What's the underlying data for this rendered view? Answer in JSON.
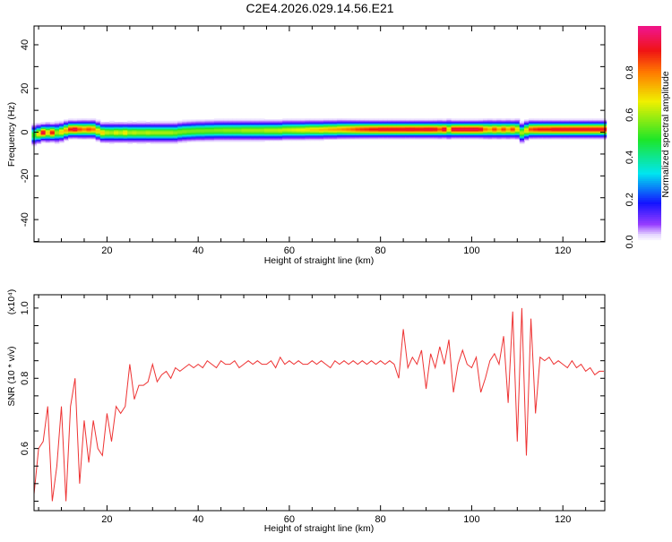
{
  "title": "C2E4.2026.029.14.56.E21",
  "chart_data": [
    {
      "type": "heatmap",
      "title": "C2E4.2026.029.14.56.E21",
      "xlabel": "Height of straight line (km)",
      "ylabel": "Frequency (Hz)",
      "xlim": [
        4,
        129.2
      ],
      "ylim": [
        -50.2,
        48.6
      ],
      "xticks": [
        20,
        40,
        60,
        80,
        100,
        120
      ],
      "yticks": [
        -40,
        -20,
        0,
        20,
        40
      ],
      "xtick_labels": [
        "20",
        "40",
        "60",
        "80",
        "100",
        "120"
      ],
      "ytick_labels": [
        "-40",
        "-20",
        "0",
        "20",
        "40"
      ],
      "colorbar": {
        "label": "Normalized spectral amplitude",
        "range": [
          0,
          1.02
        ],
        "ticks": [
          0.0,
          0.2,
          0.4,
          0.6,
          0.8
        ],
        "tick_labels": [
          "0.0",
          "0.2",
          "0.4",
          "0.6",
          "0.8"
        ]
      },
      "x": [
        4,
        5,
        6,
        7,
        8,
        9,
        10,
        11,
        12,
        13,
        14,
        15,
        16,
        17,
        18,
        19,
        20,
        21,
        22,
        23,
        24,
        25,
        26,
        27,
        28,
        29,
        30,
        31,
        32,
        33,
        34,
        35,
        36,
        37,
        38,
        39,
        40,
        41,
        42,
        43,
        44,
        45,
        46,
        47,
        48,
        49,
        50,
        51,
        52,
        53,
        54,
        55,
        56,
        57,
        58,
        59,
        60,
        61,
        62,
        63,
        64,
        65,
        66,
        67,
        68,
        69,
        70,
        71,
        72,
        73,
        74,
        75,
        76,
        77,
        78,
        79,
        80,
        81,
        82,
        83,
        84,
        85,
        86,
        87,
        88,
        89,
        90,
        91,
        92,
        93,
        94,
        95,
        96,
        97,
        98,
        99,
        100,
        101,
        102,
        103,
        104,
        105,
        106,
        107,
        108,
        109,
        110,
        111,
        112,
        113,
        114,
        115,
        116,
        117,
        118,
        119,
        120,
        121,
        122,
        123,
        124,
        125,
        126,
        127,
        128,
        129
      ],
      "peak_amplitude": [
        0.5,
        0.7,
        0.95,
        0.7,
        0.9,
        0.6,
        0.7,
        0.75,
        0.9,
        0.95,
        0.85,
        0.8,
        0.85,
        0.8,
        0.7,
        0.7,
        0.62,
        0.6,
        0.65,
        0.62,
        0.68,
        0.6,
        0.62,
        0.6,
        0.6,
        0.62,
        0.6,
        0.6,
        0.6,
        0.6,
        0.6,
        0.58,
        0.57,
        0.57,
        0.56,
        0.56,
        0.56,
        0.56,
        0.56,
        0.56,
        0.57,
        0.57,
        0.58,
        0.58,
        0.58,
        0.58,
        0.6,
        0.6,
        0.6,
        0.6,
        0.6,
        0.62,
        0.62,
        0.62,
        0.63,
        0.63,
        0.64,
        0.65,
        0.66,
        0.67,
        0.68,
        0.7,
        0.7,
        0.72,
        0.72,
        0.74,
        0.75,
        0.76,
        0.78,
        0.8,
        0.82,
        0.85,
        0.87,
        0.88,
        0.9,
        0.9,
        0.92,
        0.92,
        0.92,
        0.92,
        0.92,
        0.92,
        0.93,
        0.93,
        0.92,
        0.92,
        0.93,
        0.93,
        0.92,
        0.85,
        0.95,
        0.7,
        0.95,
        0.95,
        0.95,
        0.95,
        0.95,
        0.95,
        0.92,
        0.8,
        0.75,
        0.85,
        0.75,
        0.85,
        0.75,
        0.85,
        0.7,
        0.6,
        0.7,
        0.85,
        0.88,
        0.9,
        0.9,
        0.9,
        0.92,
        0.92,
        0.92,
        0.92,
        0.92,
        0.92,
        0.92,
        0.92,
        0.92,
        0.92,
        0.92,
        0.92
      ],
      "center_frequency_hz": [
        -1,
        -0.5,
        0,
        0,
        0,
        0,
        0.3,
        1,
        1.5,
        1.5,
        1.5,
        1.5,
        1.5,
        1.5,
        0.8,
        0,
        0,
        0,
        0,
        0,
        0,
        0,
        0,
        0,
        0,
        0,
        0,
        0,
        0,
        0,
        0,
        0,
        0.3,
        0.5,
        0.6,
        0.7,
        0.8,
        0.8,
        0.9,
        0.9,
        1,
        1,
        1,
        1,
        1,
        1,
        1,
        1,
        1,
        1,
        1,
        1,
        1,
        1,
        1,
        1.2,
        1.2,
        1.2,
        1.2,
        1.2,
        1.3,
        1.3,
        1.3,
        1.3,
        1.4,
        1.4,
        1.4,
        1.5,
        1.5,
        1.5,
        1.5,
        1.5,
        1.5,
        1.5,
        1.5,
        1.5,
        1.5,
        1.5,
        1.5,
        1.5,
        1.5,
        1.5,
        1.5,
        1.5,
        1.5,
        1.5,
        1.5,
        1.5,
        1.5,
        1.5,
        1.5,
        1.5,
        1.5,
        1.5,
        1.5,
        1.5,
        1.5,
        1.5,
        1.5,
        1.5,
        1.5,
        1.5,
        1.5,
        1.5,
        1.5,
        1.5,
        1.5,
        0,
        1,
        1.5,
        1.5,
        1.5,
        1.5,
        1.5,
        1.5,
        1.5,
        1.5,
        1.5,
        1.5,
        1.5,
        1.5,
        1.5,
        1.5,
        1.5,
        1.5,
        1.5
      ]
    },
    {
      "type": "line",
      "xlabel": "Height of straight line (km)",
      "ylabel": "SNR (10 * v/v)",
      "multiplier_label": "(x10⁴)",
      "xlim": [
        4,
        129.2
      ],
      "ylim": [
        0.423,
        1.038
      ],
      "xticks": [
        20,
        40,
        60,
        80,
        100,
        120
      ],
      "yticks": [
        0.6,
        0.8,
        1.0
      ],
      "xtick_labels": [
        "20",
        "40",
        "60",
        "80",
        "100",
        "120"
      ],
      "ytick_labels": [
        "0.6",
        "0.8",
        "1.0"
      ],
      "series": [
        {
          "name": "SNR",
          "color": "#ee3333",
          "x": [
            4,
            5,
            6,
            7,
            8,
            9,
            10,
            11,
            12,
            13,
            14,
            15,
            16,
            17,
            18,
            19,
            20,
            21,
            22,
            23,
            24,
            25,
            26,
            27,
            28,
            29,
            30,
            31,
            32,
            33,
            34,
            35,
            36,
            37,
            38,
            39,
            40,
            41,
            42,
            43,
            44,
            45,
            46,
            47,
            48,
            49,
            50,
            51,
            52,
            53,
            54,
            55,
            56,
            57,
            58,
            59,
            60,
            61,
            62,
            63,
            64,
            65,
            66,
            67,
            68,
            69,
            70,
            71,
            72,
            73,
            74,
            75,
            76,
            77,
            78,
            79,
            80,
            81,
            82,
            83,
            84,
            85,
            86,
            87,
            88,
            89,
            90,
            91,
            92,
            93,
            94,
            95,
            96,
            97,
            98,
            99,
            100,
            101,
            102,
            103,
            104,
            105,
            106,
            107,
            108,
            109,
            110,
            111,
            112,
            113,
            114,
            115,
            116,
            117,
            118,
            119,
            120,
            121,
            122,
            123,
            124,
            125,
            126,
            127,
            128,
            129
          ],
          "y": [
            0.47,
            0.6,
            0.62,
            0.72,
            0.45,
            0.55,
            0.72,
            0.45,
            0.72,
            0.8,
            0.5,
            0.68,
            0.56,
            0.68,
            0.6,
            0.58,
            0.7,
            0.62,
            0.72,
            0.7,
            0.72,
            0.84,
            0.74,
            0.78,
            0.78,
            0.79,
            0.84,
            0.79,
            0.81,
            0.82,
            0.8,
            0.83,
            0.82,
            0.83,
            0.84,
            0.83,
            0.84,
            0.83,
            0.85,
            0.84,
            0.83,
            0.85,
            0.84,
            0.84,
            0.85,
            0.83,
            0.84,
            0.85,
            0.84,
            0.85,
            0.84,
            0.84,
            0.85,
            0.83,
            0.86,
            0.84,
            0.85,
            0.84,
            0.85,
            0.84,
            0.84,
            0.85,
            0.84,
            0.85,
            0.84,
            0.83,
            0.85,
            0.84,
            0.85,
            0.84,
            0.85,
            0.84,
            0.85,
            0.84,
            0.85,
            0.84,
            0.85,
            0.84,
            0.85,
            0.84,
            0.8,
            0.94,
            0.83,
            0.86,
            0.84,
            0.88,
            0.77,
            0.87,
            0.83,
            0.89,
            0.84,
            0.91,
            0.76,
            0.84,
            0.88,
            0.84,
            0.83,
            0.86,
            0.76,
            0.8,
            0.85,
            0.87,
            0.84,
            0.92,
            0.73,
            0.99,
            0.62,
            1.0,
            0.58,
            0.97,
            0.7,
            0.86,
            0.85,
            0.86,
            0.84,
            0.85,
            0.84,
            0.83,
            0.85,
            0.83,
            0.84,
            0.82,
            0.83,
            0.81,
            0.82,
            0.82
          ]
        }
      ]
    }
  ]
}
